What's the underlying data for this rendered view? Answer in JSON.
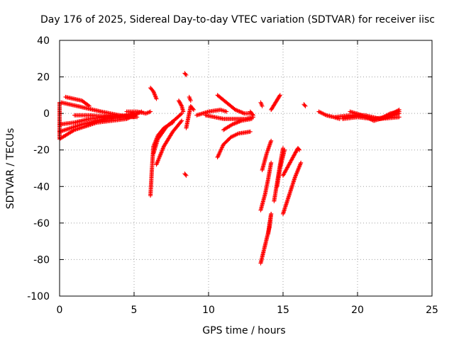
{
  "chart_data": {
    "type": "scatter",
    "title": "Day 176 of 2025, Sidereal Day-to-day VTEC variation (SDTVAR) for receiver iisc",
    "xlabel": "GPS time / hours",
    "ylabel": "SDTVAR / TECUs",
    "xlim": [
      0,
      25
    ],
    "ylim": [
      -100,
      40
    ],
    "xticks": [
      "0",
      "5",
      "10",
      "15",
      "20",
      "25"
    ],
    "yticks": [
      "40",
      "20",
      "0",
      "-20",
      "-40",
      "-60",
      "-80",
      "-100"
    ],
    "grid": true,
    "marker": "+",
    "color": "#ff0000",
    "segments": [
      {
        "x": [
          0.0,
          0.0
        ],
        "y": [
          -14,
          6
        ]
      },
      {
        "x": [
          0.1,
          1.2,
          2.8,
          4.0,
          5.2
        ],
        "y": [
          6,
          4,
          1,
          -1,
          -2
        ]
      },
      {
        "x": [
          0.4,
          1.5,
          2.0
        ],
        "y": [
          9,
          7,
          4
        ]
      },
      {
        "x": [
          0.0,
          1.0,
          2.0,
          3.0,
          4.0
        ],
        "y": [
          -6,
          -5,
          -3,
          -2,
          -1
        ]
      },
      {
        "x": [
          0.0,
          1.0,
          2.5,
          4.5,
          5.5
        ],
        "y": [
          -14,
          -9,
          -5,
          -3,
          1
        ]
      },
      {
        "x": [
          0.0,
          1.5,
          3.0,
          4.5,
          5.0
        ],
        "y": [
          -10,
          -6,
          -3,
          -1,
          0
        ]
      },
      {
        "x": [
          1.0,
          2.0,
          3.5,
          5.0
        ],
        "y": [
          -1,
          -1,
          -2,
          -2
        ]
      },
      {
        "x": [
          4.5,
          5.2,
          5.8,
          6.1
        ],
        "y": [
          1,
          1,
          0,
          1
        ]
      },
      {
        "x": [
          6.1,
          6.3,
          6.5
        ],
        "y": [
          14,
          12,
          8
        ]
      },
      {
        "x": [
          6.1,
          6.2,
          6.3,
          6.6,
          7.0,
          7.6
        ],
        "y": [
          -45,
          -30,
          -18,
          -12,
          -8,
          -5
        ]
      },
      {
        "x": [
          6.3,
          6.6,
          7.2,
          7.8,
          8.2
        ],
        "y": [
          -22,
          -14,
          -7,
          -3,
          0
        ]
      },
      {
        "x": [
          6.5,
          7.0,
          7.6,
          8.2
        ],
        "y": [
          -28,
          -18,
          -10,
          -4
        ]
      },
      {
        "x": [
          8.0,
          8.2,
          8.3
        ],
        "y": [
          7,
          4,
          1
        ]
      },
      {
        "x": [
          8.4,
          8.5
        ],
        "y": [
          22,
          21
        ]
      },
      {
        "x": [
          8.5,
          8.8,
          9.0
        ],
        "y": [
          -8,
          4,
          2
        ]
      },
      {
        "x": [
          8.4,
          8.5
        ],
        "y": [
          -33,
          -34
        ]
      },
      {
        "x": [
          8.7,
          8.8
        ],
        "y": [
          9,
          7
        ]
      },
      {
        "x": [
          9.2,
          10.0,
          10.8,
          11.2
        ],
        "y": [
          -1,
          1,
          2,
          1
        ]
      },
      {
        "x": [
          9.8,
          11.0,
          12.5,
          13.0
        ],
        "y": [
          -1,
          -3,
          -3,
          -2
        ]
      },
      {
        "x": [
          10.6,
          11.2,
          11.8,
          12.4,
          12.8
        ],
        "y": [
          10,
          6,
          2,
          0,
          0
        ]
      },
      {
        "x": [
          10.6,
          11.0,
          11.5,
          12.0,
          12.8
        ],
        "y": [
          -24,
          -17,
          -13,
          -11,
          -10
        ]
      },
      {
        "x": [
          11.0,
          11.6,
          12.2,
          12.9
        ],
        "y": [
          -9,
          -6,
          -4,
          -3
        ]
      },
      {
        "x": [
          12.8,
          13.0
        ],
        "y": [
          1,
          -1
        ]
      },
      {
        "x": [
          13.5,
          13.6
        ],
        "y": [
          6,
          4
        ]
      },
      {
        "x": [
          13.5,
          13.8,
          14.1,
          14.2
        ],
        "y": [
          -82,
          -72,
          -62,
          -55
        ]
      },
      {
        "x": [
          14.0,
          14.1,
          14.2
        ],
        "y": [
          -66,
          -60,
          -55
        ]
      },
      {
        "x": [
          13.5,
          13.8,
          14.0,
          14.2
        ],
        "y": [
          -53,
          -44,
          -36,
          -27
        ]
      },
      {
        "x": [
          13.6,
          13.9,
          14.2
        ],
        "y": [
          -31,
          -22,
          -15
        ]
      },
      {
        "x": [
          14.2,
          14.5,
          14.8
        ],
        "y": [
          2,
          6,
          10
        ]
      },
      {
        "x": [
          14.4,
          14.6,
          14.8,
          15.0
        ],
        "y": [
          -48,
          -38,
          -28,
          -19
        ]
      },
      {
        "x": [
          14.6,
          14.8,
          15.1
        ],
        "y": [
          -40,
          -30,
          -20
        ]
      },
      {
        "x": [
          15.0,
          15.4,
          15.8,
          16.0,
          16.1
        ],
        "y": [
          -34,
          -28,
          -22,
          -19,
          -20
        ]
      },
      {
        "x": [
          15.0,
          15.4,
          15.8,
          16.2
        ],
        "y": [
          -55,
          -45,
          -35,
          -27
        ]
      },
      {
        "x": [
          16.4,
          16.5
        ],
        "y": [
          5,
          4
        ]
      },
      {
        "x": [
          17.4,
          17.9,
          18.4,
          18.8
        ],
        "y": [
          1,
          -1,
          -2,
          -3
        ]
      },
      {
        "x": [
          18.5,
          19.5,
          20.5,
          21.5,
          22.8
        ],
        "y": [
          -2,
          -1,
          -1,
          -3,
          -2
        ]
      },
      {
        "x": [
          19.0,
          20.0,
          21.0,
          22.0,
          22.8
        ],
        "y": [
          -3,
          -2,
          -3,
          -2,
          0
        ]
      },
      {
        "x": [
          19.5,
          20.3,
          21.1,
          21.9,
          22.8
        ],
        "y": [
          1,
          -1,
          -4,
          -2,
          2
        ]
      },
      {
        "x": [
          21.5,
          22.2,
          22.8
        ],
        "y": [
          -3,
          0,
          1
        ]
      }
    ]
  }
}
